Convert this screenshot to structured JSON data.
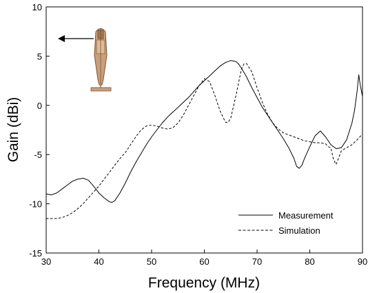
{
  "chart_data": {
    "type": "line",
    "xlabel": "Frequency (MHz)",
    "ylabel": "Gain (dBi)",
    "xlim": [
      30,
      90
    ],
    "ylim": [
      -15,
      10
    ],
    "xticks": [
      30,
      40,
      50,
      60,
      70,
      80,
      90
    ],
    "yticks": [
      -15,
      -10,
      -5,
      0,
      5,
      10
    ],
    "grid": false,
    "legend_position": "bottom-right",
    "series": [
      {
        "name": "Measurement",
        "style": "solid",
        "color": "#000000",
        "x": [
          30,
          31,
          32,
          33,
          34,
          35,
          36,
          37,
          38,
          39,
          40,
          41,
          42,
          42.5,
          43,
          44,
          45,
          46,
          47,
          48,
          49,
          50,
          51,
          52,
          53,
          54,
          55,
          56,
          57,
          58,
          59,
          60,
          61,
          62,
          63,
          64,
          65,
          66,
          66.5,
          67,
          68,
          69,
          70,
          71,
          72,
          73,
          74,
          75,
          76,
          77,
          77.5,
          78,
          78.5,
          79,
          80,
          81,
          82,
          83,
          84,
          85,
          86,
          87,
          88,
          88.5,
          89,
          89.3,
          89.6,
          90
        ],
        "y": [
          -9.0,
          -9.1,
          -8.9,
          -8.5,
          -8.1,
          -7.7,
          -7.5,
          -7.4,
          -7.6,
          -8.2,
          -8.9,
          -9.4,
          -9.8,
          -9.85,
          -9.7,
          -8.9,
          -7.9,
          -6.8,
          -5.8,
          -4.9,
          -4.0,
          -3.2,
          -2.5,
          -1.8,
          -1.2,
          -0.7,
          -0.2,
          0.3,
          0.8,
          1.4,
          2.0,
          2.5,
          3.0,
          3.5,
          4.0,
          4.35,
          4.55,
          4.45,
          4.2,
          3.8,
          2.9,
          1.8,
          0.8,
          -0.2,
          -1.0,
          -1.8,
          -2.6,
          -3.4,
          -4.3,
          -5.4,
          -6.2,
          -6.4,
          -6.1,
          -5.4,
          -4.2,
          -3.1,
          -2.6,
          -3.2,
          -4.0,
          -4.4,
          -4.3,
          -3.5,
          -1.8,
          -0.5,
          1.5,
          3.1,
          2.0,
          0.9
        ]
      },
      {
        "name": "Simulation",
        "style": "dashed",
        "color": "#000000",
        "x": [
          30,
          31,
          32,
          33,
          34,
          35,
          36,
          37,
          38,
          39,
          40,
          41,
          42,
          43,
          44,
          45,
          46,
          47,
          48,
          49,
          50,
          51,
          52,
          53,
          54,
          55,
          56,
          57,
          58,
          59,
          60,
          61,
          62,
          63,
          64,
          64.5,
          65,
          66,
          67,
          67.5,
          68,
          69,
          70,
          71,
          72,
          73,
          74,
          75,
          76,
          77,
          78,
          79,
          80,
          81,
          82,
          83,
          83.5,
          84,
          84.5,
          85,
          86,
          87,
          88,
          89,
          90
        ],
        "y": [
          -11.5,
          -11.5,
          -11.5,
          -11.4,
          -11.2,
          -10.9,
          -10.5,
          -10.0,
          -9.4,
          -8.8,
          -8.2,
          -7.5,
          -6.8,
          -6.1,
          -5.4,
          -4.8,
          -4.0,
          -3.2,
          -2.5,
          -2.1,
          -2.0,
          -2.1,
          -2.3,
          -2.4,
          -2.3,
          -1.8,
          -1.0,
          0.0,
          1.0,
          2.0,
          2.7,
          2.4,
          1.0,
          -0.6,
          -1.7,
          -1.75,
          -1.3,
          1.0,
          3.6,
          4.2,
          4.25,
          3.4,
          1.8,
          0.3,
          -0.9,
          -1.8,
          -2.4,
          -2.8,
          -3.0,
          -3.2,
          -3.4,
          -3.6,
          -3.7,
          -3.8,
          -3.8,
          -3.9,
          -4.2,
          -4.3,
          -5.5,
          -6.0,
          -4.6,
          -4.3,
          -4.0,
          -3.5,
          -2.9
        ]
      }
    ]
  }
}
